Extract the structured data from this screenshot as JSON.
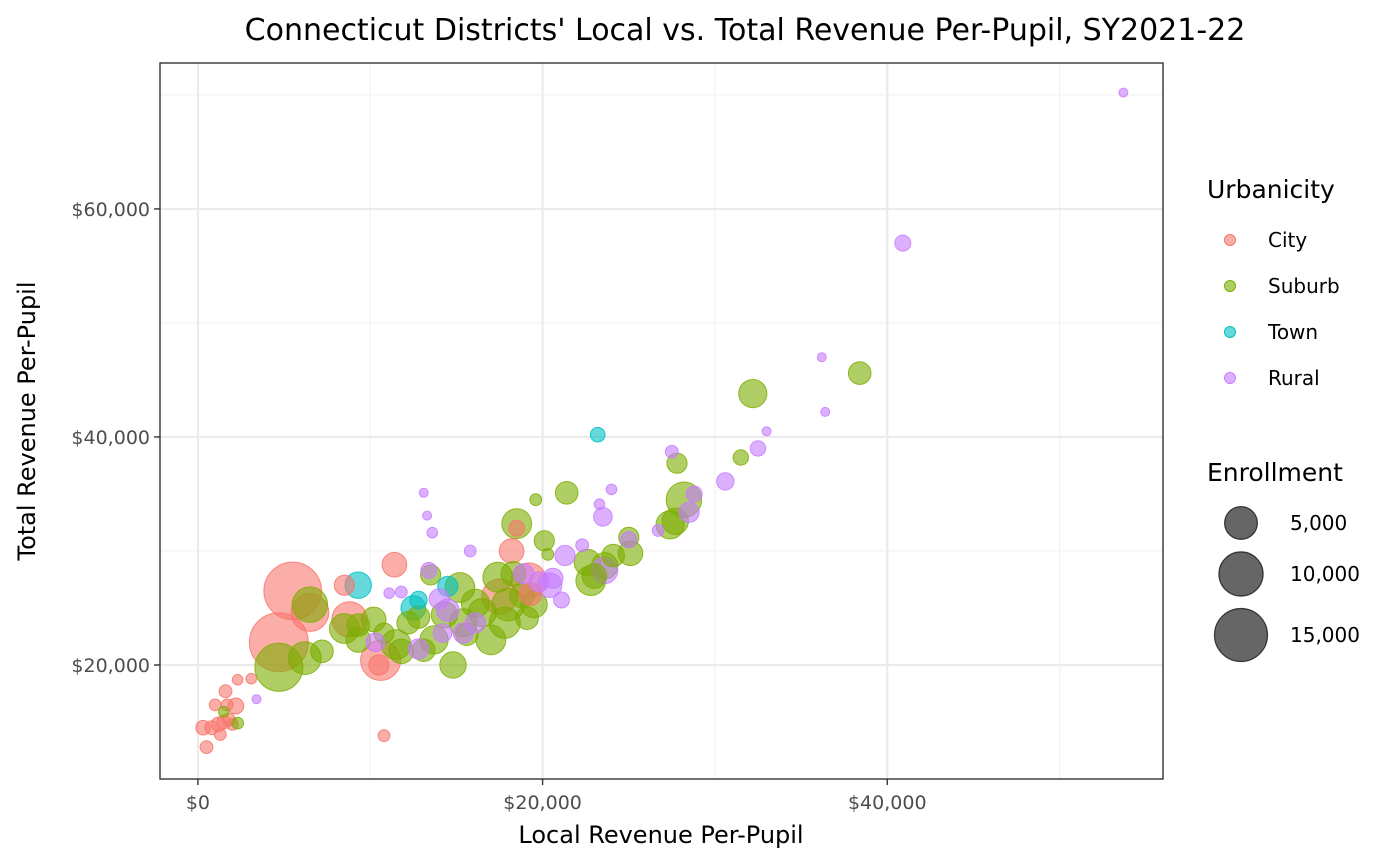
{
  "chart_data": {
    "type": "scatter",
    "title": "Connecticut Districts' Local vs. Total Revenue Per-Pupil, SY2021-22",
    "xlabel": "Local Revenue Per-Pupil",
    "ylabel": "Total Revenue Per-Pupil",
    "xlim": [
      -2200,
      56000
    ],
    "ylim": [
      10000,
      72800
    ],
    "x_ticks": [
      0,
      20000,
      40000
    ],
    "x_tick_labels": [
      "$0",
      "$20,000",
      "$40,000"
    ],
    "x_minor": [
      10000,
      30000,
      50000
    ],
    "y_ticks": [
      20000,
      40000,
      60000
    ],
    "y_tick_labels": [
      "$20,000",
      "$40,000",
      "$60,000"
    ],
    "y_minor": [
      30000,
      50000,
      70000
    ],
    "grid": true,
    "colors": {
      "City": "#F8766D",
      "Suburb": "#7CAE00",
      "Town": "#00BFC4",
      "Rural": "#C77CFF"
    },
    "legend": {
      "placement": "right",
      "color_title": "Urbanicity",
      "color_entries": [
        "City",
        "Suburb",
        "Town",
        "Rural"
      ],
      "size_title": "Enrollment",
      "size_entries": [
        {
          "label": "5,000",
          "value": 5000
        },
        {
          "label": "10,000",
          "value": 10000
        },
        {
          "label": "15,000",
          "value": 15000
        }
      ]
    },
    "series": [
      {
        "name": "City",
        "points": [
          [
            300,
            14500,
            600
          ],
          [
            500,
            12800,
            400
          ],
          [
            800,
            14500,
            500
          ],
          [
            1000,
            16500,
            300
          ],
          [
            1200,
            14800,
            600
          ],
          [
            1300,
            13900,
            300
          ],
          [
            1500,
            15000,
            500
          ],
          [
            1600,
            17700,
            400
          ],
          [
            1700,
            16500,
            300
          ],
          [
            1800,
            15200,
            400
          ],
          [
            2000,
            14800,
            300
          ],
          [
            2200,
            16400,
            800
          ],
          [
            2300,
            18700,
            200
          ],
          [
            3100,
            18800,
            200
          ],
          [
            4700,
            22000,
            19000
          ],
          [
            5500,
            26500,
            18000
          ],
          [
            6500,
            24600,
            7000
          ],
          [
            8500,
            27000,
            1500
          ],
          [
            8800,
            24000,
            6000
          ],
          [
            10600,
            20400,
            8000
          ],
          [
            10500,
            20000,
            1500
          ],
          [
            10800,
            13800,
            300
          ],
          [
            11400,
            28800,
            2500
          ],
          [
            17500,
            26000,
            6000
          ],
          [
            18200,
            30000,
            2500
          ],
          [
            19200,
            27400,
            6000
          ],
          [
            18500,
            32000,
            800
          ],
          [
            19300,
            26200,
            2000
          ]
        ]
      },
      {
        "name": "Suburb",
        "points": [
          [
            1500,
            15900,
            200
          ],
          [
            2300,
            14900,
            300
          ],
          [
            4700,
            19800,
            12000
          ],
          [
            6200,
            20600,
            5000
          ],
          [
            6500,
            25300,
            6000
          ],
          [
            7200,
            21200,
            2000
          ],
          [
            8500,
            23200,
            4000
          ],
          [
            9300,
            23500,
            2000
          ],
          [
            9300,
            22200,
            2500
          ],
          [
            10200,
            24000,
            2500
          ],
          [
            10800,
            22800,
            1500
          ],
          [
            11500,
            21800,
            4000
          ],
          [
            12200,
            23700,
            2000
          ],
          [
            11800,
            21200,
            2500
          ],
          [
            12800,
            24200,
            2000
          ],
          [
            13100,
            21300,
            2000
          ],
          [
            13500,
            27900,
            1500
          ],
          [
            13700,
            22200,
            3500
          ],
          [
            14300,
            24400,
            3000
          ],
          [
            14800,
            20000,
            3000
          ],
          [
            15200,
            26800,
            4000
          ],
          [
            15400,
            23700,
            3500
          ],
          [
            15600,
            22700,
            2000
          ],
          [
            16100,
            25400,
            3500
          ],
          [
            16500,
            24600,
            3500
          ],
          [
            17000,
            22200,
            4000
          ],
          [
            17400,
            27700,
            4000
          ],
          [
            17800,
            23700,
            4500
          ],
          [
            18000,
            25300,
            5000
          ],
          [
            18300,
            28000,
            2500
          ],
          [
            18500,
            32400,
            4000
          ],
          [
            18800,
            26100,
            2500
          ],
          [
            19100,
            24100,
            2000
          ],
          [
            19500,
            25300,
            3000
          ],
          [
            19600,
            34500,
            300
          ],
          [
            20100,
            30900,
            1500
          ],
          [
            20300,
            29700,
            300
          ],
          [
            21400,
            35100,
            2000
          ],
          [
            22600,
            29000,
            3000
          ],
          [
            22800,
            27400,
            4000
          ],
          [
            23000,
            27800,
            2500
          ],
          [
            23600,
            28700,
            3000
          ],
          [
            24100,
            29600,
            2000
          ],
          [
            25000,
            31200,
            1500
          ],
          [
            25100,
            29800,
            2500
          ],
          [
            27400,
            32300,
            3500
          ],
          [
            27700,
            32600,
            3000
          ],
          [
            27800,
            37700,
            1500
          ],
          [
            28200,
            34500,
            6000
          ],
          [
            31500,
            38200,
            700
          ],
          [
            32200,
            43800,
            3500
          ],
          [
            38400,
            45600,
            2000
          ]
        ]
      },
      {
        "name": "Town",
        "points": [
          [
            9300,
            27000,
            3000
          ],
          [
            12500,
            25000,
            2500
          ],
          [
            12800,
            25700,
            1000
          ],
          [
            14500,
            26900,
            1500
          ],
          [
            23200,
            40200,
            600
          ]
        ]
      },
      {
        "name": "Rural",
        "points": [
          [
            3400,
            17000,
            100
          ],
          [
            10300,
            22000,
            1200
          ],
          [
            11100,
            26300,
            200
          ],
          [
            11800,
            26400,
            300
          ],
          [
            12800,
            21400,
            1500
          ],
          [
            13100,
            35100,
            100
          ],
          [
            13300,
            33100,
            100
          ],
          [
            13400,
            28300,
            800
          ],
          [
            13600,
            31600,
            200
          ],
          [
            14000,
            25800,
            1500
          ],
          [
            14200,
            22800,
            1200
          ],
          [
            14500,
            24800,
            2000
          ],
          [
            15800,
            30000,
            300
          ],
          [
            15400,
            22800,
            1500
          ],
          [
            16100,
            23700,
            1500
          ],
          [
            18900,
            28000,
            1500
          ],
          [
            19800,
            27300,
            1500
          ],
          [
            20400,
            27000,
            2500
          ],
          [
            20600,
            27600,
            1500
          ],
          [
            21100,
            25700,
            800
          ],
          [
            21300,
            29600,
            1500
          ],
          [
            22300,
            30500,
            400
          ],
          [
            23300,
            34100,
            200
          ],
          [
            23500,
            33000,
            1200
          ],
          [
            23600,
            28300,
            3000
          ],
          [
            24000,
            35400,
            200
          ],
          [
            25000,
            31000,
            800
          ],
          [
            26700,
            31800,
            300
          ],
          [
            27500,
            38700,
            400
          ],
          [
            28500,
            33400,
            1500
          ],
          [
            28800,
            35000,
            800
          ],
          [
            30600,
            36100,
            1000
          ],
          [
            32500,
            39000,
            700
          ],
          [
            33000,
            40500,
            100
          ],
          [
            36200,
            47000,
            100
          ],
          [
            36400,
            42200,
            100
          ],
          [
            40900,
            57000,
            800
          ],
          [
            53700,
            70200,
            100
          ]
        ]
      }
    ]
  }
}
